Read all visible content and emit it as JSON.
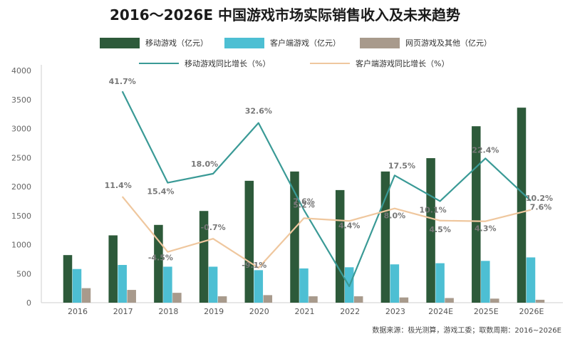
{
  "title": "2016～2026E 中国游戏市场实际销售收入及未来趋势",
  "source": "数据来源：极光测算，游戏工委；取数周期：2016~2026E",
  "colors": {
    "mobile": "#2d5a3a",
    "client": "#4dbfd3",
    "web": "#a89a8c",
    "mobile_growth": "#3a9a96",
    "client_growth": "#efc79e"
  },
  "legend": {
    "mobile": "移动游戏（亿元）",
    "client": "客户端游戏（亿元）",
    "web": "网页游戏及其他（亿元）",
    "mobile_growth": "移动游戏同比增长（%）",
    "client_growth": "客户端游戏同比增长（%）"
  },
  "chart_data": {
    "type": "bar",
    "categories": [
      "2016",
      "2017",
      "2018",
      "2019",
      "2020",
      "2021",
      "2022",
      "2023",
      "2024E",
      "2025E",
      "2026E"
    ],
    "ylim": [
      0,
      4000
    ],
    "yticks": [
      0,
      500,
      1000,
      1500,
      2000,
      2500,
      3000,
      3500,
      4000
    ],
    "series": [
      {
        "name": "移动游戏（亿元）",
        "type": "bar",
        "values": [
          820,
          1160,
          1340,
          1580,
          2100,
          2260,
          1940,
          2260,
          2490,
          3040,
          3360
        ]
      },
      {
        "name": "客户端游戏（亿元）",
        "type": "bar",
        "values": [
          580,
          650,
          620,
          620,
          560,
          590,
          610,
          660,
          680,
          720,
          780
        ]
      },
      {
        "name": "网页游戏及其他（亿元）",
        "type": "bar",
        "values": [
          250,
          220,
          170,
          110,
          130,
          110,
          110,
          90,
          80,
          70,
          50
        ]
      },
      {
        "name": "移动游戏同比增长（%）",
        "type": "line",
        "values": [
          null,
          41.7,
          15.4,
          18.0,
          32.6,
          7.6,
          -14.4,
          17.5,
          10.1,
          22.4,
          10.2
        ],
        "labels": [
          null,
          "41.7%",
          "15.4%",
          "18.0%",
          "32.6%",
          "7.6%",
          null,
          "17.5%",
          "10.1%",
          "22.4%",
          "10.2%"
        ]
      },
      {
        "name": "客户端游戏同比增长（%）",
        "type": "line",
        "values": [
          null,
          11.4,
          -4.5,
          -0.7,
          -9.1,
          5.2,
          4.4,
          8.0,
          4.5,
          4.3,
          7.6
        ],
        "labels": [
          null,
          "11.4%",
          "-4.5%",
          "-0.7%",
          "-9.1%",
          "5.2%",
          "4.4%",
          "8.0%",
          "4.5%",
          "4.3%",
          "7.6%"
        ]
      }
    ]
  }
}
